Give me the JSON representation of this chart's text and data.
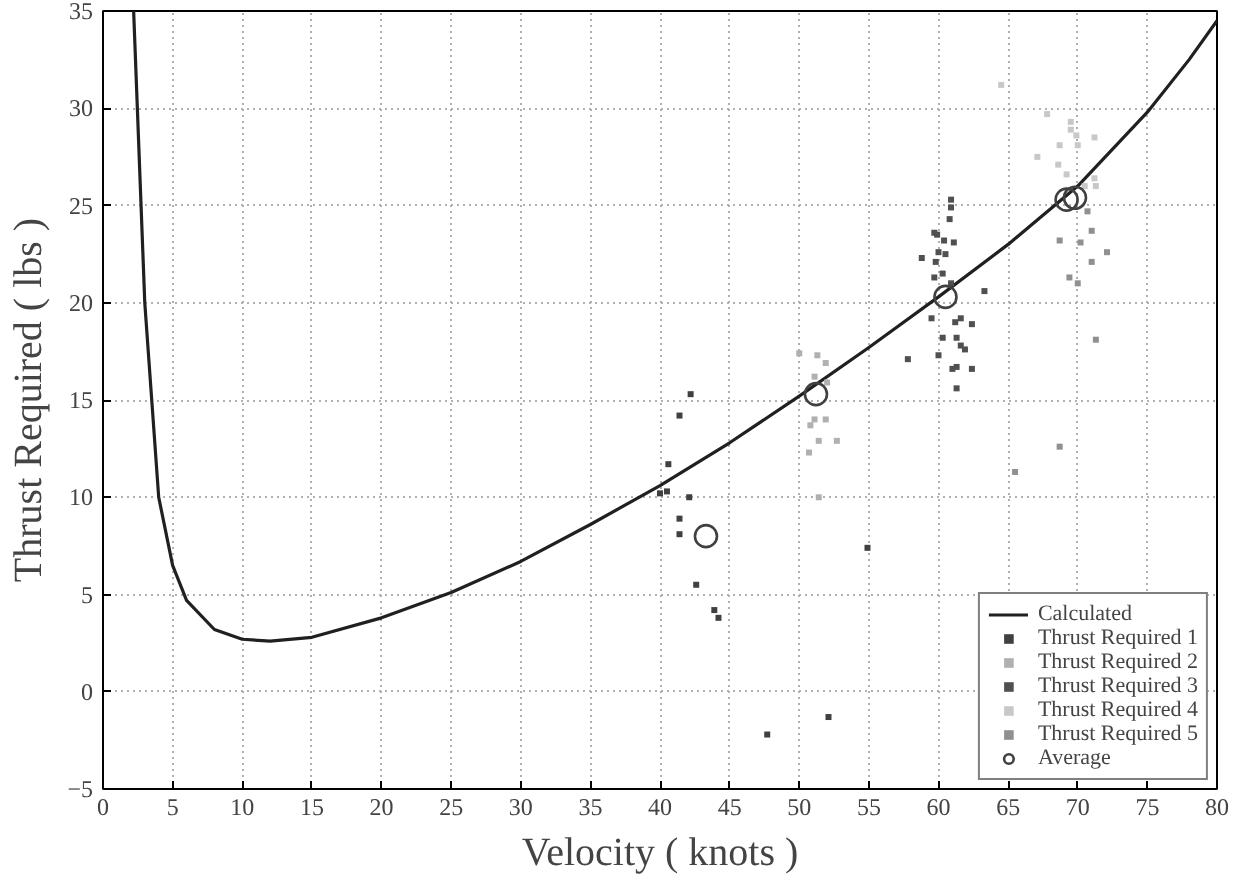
{
  "chart_data": {
    "type": "line",
    "xlabel": "Velocity ( knots )",
    "ylabel": "Thrust Required ( lbs )",
    "xlim": [
      0,
      80
    ],
    "ylim": [
      -5,
      35
    ],
    "xticks": [
      0,
      5,
      10,
      15,
      20,
      25,
      30,
      35,
      40,
      45,
      50,
      55,
      60,
      65,
      70,
      75,
      80
    ],
    "yticks": [
      -5,
      0,
      5,
      10,
      15,
      20,
      25,
      30,
      35
    ],
    "grid": true,
    "legend": "bottom right",
    "series": [
      {
        "name": "Calculated",
        "color": "#202020",
        "marker": "none",
        "line_style": "solid",
        "x": [
          2.2,
          3,
          3.5,
          4,
          5,
          6,
          8,
          10,
          12,
          15,
          20,
          25,
          30,
          35,
          40,
          45,
          50,
          55,
          60,
          65,
          70,
          75,
          78,
          80
        ],
        "values": [
          35,
          20,
          15,
          10,
          6.5,
          4.7,
          3.2,
          2.7,
          2.6,
          2.8,
          3.8,
          5.1,
          6.7,
          8.6,
          10.6,
          12.8,
          15.2,
          17.7,
          20.3,
          23.0,
          26.0,
          29.8,
          32.5,
          34.5
        ]
      },
      {
        "name": "Thrust Required 1",
        "type": "scatter",
        "color": "#404040",
        "marker": "square",
        "x": [
          40.6,
          42.2,
          41.4,
          40.5,
          40.0,
          42.1,
          41.4,
          41.4,
          42.6,
          43.9,
          44.2,
          47.7,
          52.1,
          54.9
        ],
        "values": [
          11.7,
          15.3,
          14.2,
          10.3,
          10.2,
          10.0,
          8.9,
          8.1,
          5.5,
          4.2,
          3.8,
          -2.2,
          -1.3,
          7.4
        ]
      },
      {
        "name": "Thrust Required 2",
        "type": "scatter",
        "color": "#b0b0b0",
        "marker": "square",
        "x": [
          50.0,
          51.3,
          51.9,
          51.1,
          52.0,
          51.1,
          50.8,
          51.9,
          51.4,
          52.7,
          50.7,
          51.4
        ],
        "values": [
          17.4,
          17.3,
          16.9,
          16.2,
          15.9,
          14.0,
          13.7,
          14.0,
          12.9,
          12.9,
          12.3,
          10.0
        ]
      },
      {
        "name": "Thrust Required 3",
        "type": "scatter",
        "color": "#505050",
        "marker": "square",
        "x": [
          57.8,
          60.9,
          60.9,
          60.8,
          59.7,
          59.9,
          60.4,
          61.1,
          60.0,
          60.5,
          59.8,
          60.3,
          59.7,
          60.9,
          63.3,
          59.5,
          61.2,
          61.6,
          62.4,
          60.3,
          61.3,
          61.6,
          61.9,
          60.0,
          61.0,
          61.3,
          62.4,
          61.3,
          58.8
        ],
        "values": [
          17.1,
          25.3,
          24.9,
          24.3,
          23.6,
          23.5,
          23.2,
          23.1,
          22.6,
          22.5,
          22.1,
          21.5,
          21.3,
          21.0,
          20.6,
          19.2,
          19.0,
          19.2,
          18.9,
          18.2,
          18.2,
          17.8,
          17.6,
          17.3,
          16.6,
          16.7,
          16.6,
          15.6,
          22.3
        ]
      },
      {
        "name": "Thrust Required 4",
        "type": "scatter",
        "color": "#c8c8c8",
        "marker": "square",
        "x": [
          67.8,
          64.5,
          69.5,
          69.5,
          67.1,
          68.7,
          69.9,
          71.2,
          68.6,
          69.2,
          70.0,
          71.2,
          71.3,
          70.5
        ],
        "values": [
          29.7,
          31.2,
          28.9,
          29.3,
          27.5,
          28.1,
          28.6,
          28.5,
          27.1,
          26.6,
          28.1,
          26.4,
          26.0,
          26.0
        ]
      },
      {
        "name": "Thrust Required 5",
        "type": "scatter",
        "color": "#909090",
        "marker": "square",
        "x": [
          70.7,
          71.0,
          70.2,
          68.7,
          72.1,
          71.0,
          69.4,
          70.0,
          71.3,
          68.7,
          65.5
        ],
        "values": [
          24.7,
          23.7,
          23.1,
          23.2,
          22.6,
          22.1,
          21.3,
          21.0,
          18.1,
          12.6,
          11.3
        ]
      },
      {
        "name": "Average",
        "type": "scatter",
        "color": "#404040",
        "marker": "circle",
        "x": [
          43.3,
          51.2,
          60.5,
          69.2,
          69.8
        ],
        "values": [
          8.0,
          15.3,
          20.3,
          25.3,
          25.4
        ]
      }
    ]
  }
}
